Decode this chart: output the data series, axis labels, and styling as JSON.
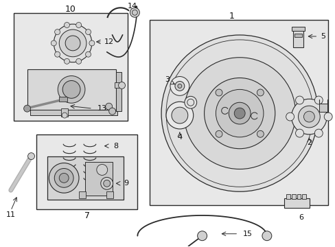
{
  "background_color": "#ffffff",
  "line_color": "#2a2a2a",
  "fill_box": "#e8e8e8",
  "fill_light": "#f0f0f0",
  "fill_mid": "#d8d8d8",
  "fill_dark": "#b8b8b8",
  "figsize": [
    4.89,
    3.6
  ],
  "dpi": 100
}
